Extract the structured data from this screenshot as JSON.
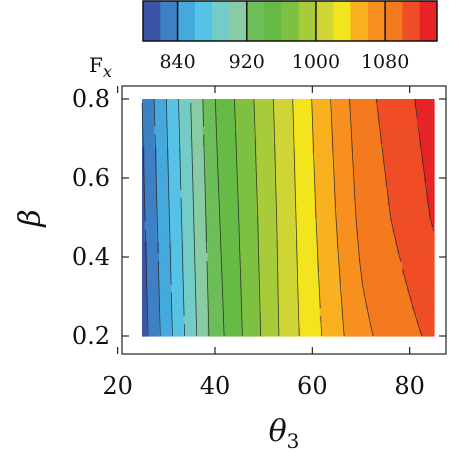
{
  "chart_data": {
    "type": "heatmap",
    "subtype": "filled-contour",
    "title": "",
    "xlabel": "θ",
    "xlabel_sub": "3",
    "ylabel": "β",
    "xlim": [
      25,
      85
    ],
    "ylim": [
      0.2,
      0.8
    ],
    "x_ticks": [
      20,
      40,
      60,
      80
    ],
    "y_ticks": [
      0.2,
      0.4,
      0.6,
      0.8
    ],
    "x_tick_labels": [
      "20",
      "40",
      "60",
      "80"
    ],
    "y_tick_labels": [
      "0.2",
      "0.4",
      "0.6",
      "0.8"
    ],
    "colorbar": {
      "label_main": "F",
      "label_sub": "x",
      "ticks": [
        840,
        920,
        1000,
        1080
      ],
      "tick_labels": [
        "840",
        "920",
        "1000",
        "1080"
      ],
      "range": [
        800,
        1140
      ],
      "colors": [
        "#3a55a5",
        "#3f7fc4",
        "#45a9dd",
        "#56c2e6",
        "#73cdc6",
        "#89cba2",
        "#6dbd59",
        "#65bb45",
        "#7ec041",
        "#a8cb3a",
        "#cfd534",
        "#f2e51e",
        "#f9b120",
        "#f7901f",
        "#f47a20",
        "#ef4d26",
        "#e62428"
      ],
      "grid_on": false
    },
    "x": [
      25,
      40,
      55,
      70,
      85
    ],
    "y": [
      0.2,
      0.5,
      0.8
    ],
    "z": [
      [
        810,
        930,
        1010,
        1075,
        1105
      ],
      [
        815,
        935,
        1012,
        1085,
        1122
      ],
      [
        820,
        940,
        1015,
        1092,
        1130
      ]
    ],
    "grid_on": false
  }
}
